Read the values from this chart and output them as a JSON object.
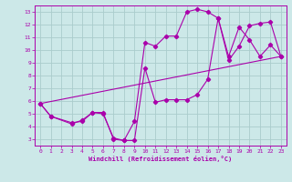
{
  "xlabel": "Windchill (Refroidissement éolien,°C)",
  "bg_color": "#cce8e8",
  "line_color": "#aa00aa",
  "grid_color": "#aacccc",
  "xlim": [
    -0.5,
    23.5
  ],
  "ylim": [
    2.5,
    13.5
  ],
  "xticks": [
    0,
    1,
    2,
    3,
    4,
    5,
    6,
    7,
    8,
    9,
    10,
    11,
    12,
    13,
    14,
    15,
    16,
    17,
    18,
    19,
    20,
    21,
    22,
    23
  ],
  "yticks": [
    3,
    4,
    5,
    6,
    7,
    8,
    9,
    10,
    11,
    12,
    13
  ],
  "line1_x": [
    0,
    1,
    3,
    4,
    5,
    6,
    7,
    8,
    9,
    10,
    11,
    12,
    13,
    14,
    15,
    16,
    17,
    18,
    19,
    20,
    21,
    22,
    23
  ],
  "line1_y": [
    5.8,
    4.8,
    4.2,
    4.5,
    5.1,
    5.1,
    3.0,
    2.9,
    4.4,
    10.6,
    10.3,
    11.1,
    11.1,
    13.0,
    13.2,
    13.0,
    12.5,
    9.5,
    11.8,
    10.8,
    9.5,
    10.4,
    9.5
  ],
  "line2_x": [
    0,
    1,
    3,
    4,
    5,
    6,
    7,
    8,
    9,
    10,
    11,
    12,
    13,
    14,
    15,
    16,
    17,
    18,
    19,
    20,
    21,
    22,
    23
  ],
  "line2_y": [
    5.8,
    4.8,
    4.3,
    4.4,
    5.1,
    5.0,
    3.1,
    2.9,
    2.9,
    8.6,
    5.9,
    6.1,
    6.1,
    6.1,
    6.5,
    7.7,
    12.5,
    9.2,
    10.3,
    11.9,
    12.1,
    12.2,
    9.5
  ],
  "line3_x": [
    0,
    23
  ],
  "line3_y": [
    5.8,
    9.5
  ]
}
